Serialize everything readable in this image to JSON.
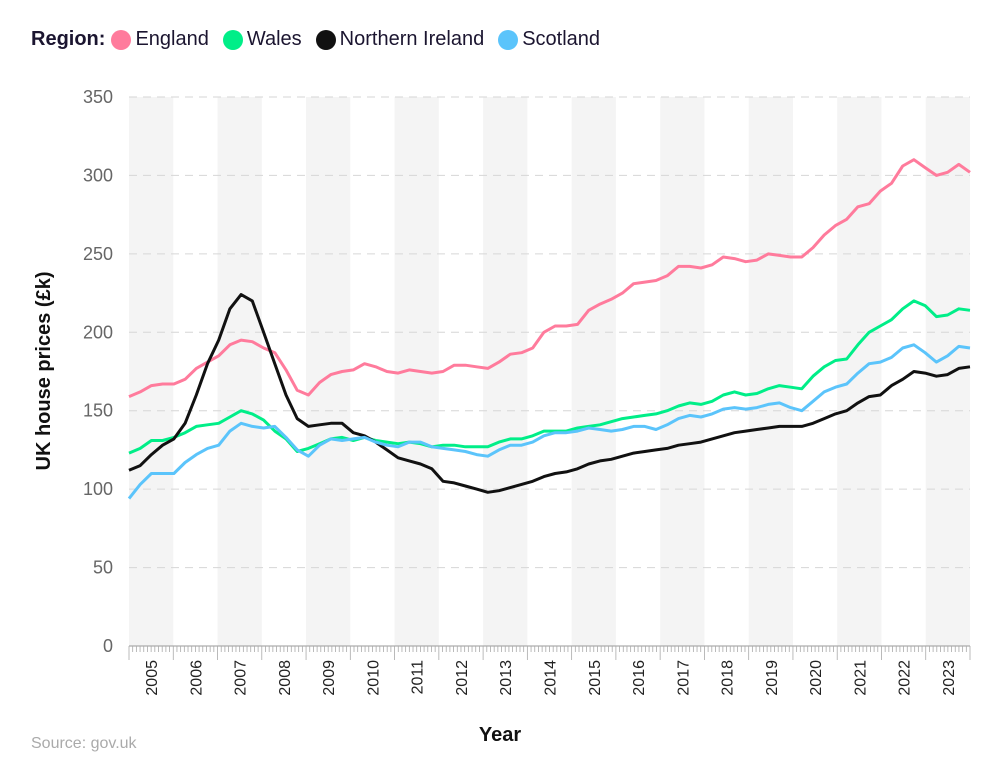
{
  "chart_data": {
    "type": "line",
    "title": "",
    "xlabel": "Year",
    "ylabel": "UK house prices (£k)",
    "ylim": [
      0,
      350
    ],
    "yticks": [
      0,
      50,
      100,
      150,
      200,
      250,
      300,
      350
    ],
    "xticks": [
      "2005",
      "2006",
      "2007",
      "2008",
      "2009",
      "2010",
      "2011",
      "2012",
      "2013",
      "2014",
      "2015",
      "2016",
      "2017",
      "2018",
      "2019",
      "2020",
      "2021",
      "2022",
      "2023"
    ],
    "x_note_resolution": "quarterly",
    "grid": "horizontal dashed, alternating year bands",
    "legend": {
      "title": "Region:",
      "placement": "top-left"
    },
    "series": [
      {
        "name": "England",
        "color": "#ff7b9c",
        "values": [
          159,
          162,
          166,
          167,
          167,
          170,
          177,
          181,
          185,
          192,
          195,
          194,
          190,
          187,
          176,
          163,
          160,
          168,
          173,
          175,
          176,
          180,
          178,
          175,
          174,
          176,
          175,
          174,
          175,
          179,
          179,
          178,
          177,
          181,
          186,
          187,
          190,
          200,
          204,
          204,
          205,
          214,
          218,
          221,
          225,
          231,
          232,
          233,
          236,
          242,
          242,
          241,
          243,
          248,
          247,
          245,
          246,
          250,
          249,
          248,
          248,
          254,
          262,
          268,
          272,
          280,
          282,
          290,
          295,
          306,
          310,
          305,
          300,
          302,
          307,
          302
        ]
      },
      {
        "name": "Wales",
        "color": "#00ee88",
        "values": [
          123,
          126,
          131,
          131,
          133,
          136,
          140,
          141,
          142,
          146,
          150,
          148,
          144,
          137,
          132,
          124,
          126,
          129,
          132,
          133,
          131,
          133,
          131,
          130,
          129,
          130,
          129,
          127,
          128,
          128,
          127,
          127,
          127,
          130,
          132,
          132,
          134,
          137,
          137,
          137,
          139,
          140,
          141,
          143,
          145,
          146,
          147,
          148,
          150,
          153,
          155,
          154,
          156,
          160,
          162,
          160,
          161,
          164,
          166,
          165,
          164,
          172,
          178,
          182,
          183,
          192,
          200,
          204,
          208,
          215,
          220,
          217,
          210,
          211,
          215,
          214
        ]
      },
      {
        "name": "Northern Ireland",
        "color": "#111111",
        "values": [
          112,
          115,
          122,
          128,
          132,
          142,
          160,
          180,
          195,
          215,
          224,
          220,
          200,
          180,
          160,
          145,
          140,
          141,
          142,
          142,
          136,
          134,
          130,
          125,
          120,
          118,
          116,
          113,
          105,
          104,
          102,
          100,
          98,
          99,
          101,
          103,
          105,
          108,
          110,
          111,
          113,
          116,
          118,
          119,
          121,
          123,
          124,
          125,
          126,
          128,
          129,
          130,
          132,
          134,
          136,
          137,
          138,
          139,
          140,
          140,
          140,
          142,
          145,
          148,
          150,
          155,
          159,
          160,
          166,
          170,
          175,
          174,
          172,
          173,
          177,
          178
        ]
      },
      {
        "name": "Scotland",
        "color": "#5bc4fb",
        "values": [
          94,
          103,
          110,
          110,
          110,
          117,
          122,
          126,
          128,
          137,
          142,
          140,
          139,
          140,
          133,
          125,
          121,
          128,
          132,
          131,
          132,
          133,
          130,
          128,
          127,
          130,
          130,
          127,
          126,
          125,
          124,
          122,
          121,
          125,
          128,
          128,
          130,
          134,
          136,
          136,
          137,
          139,
          138,
          137,
          138,
          140,
          140,
          138,
          141,
          145,
          147,
          146,
          148,
          151,
          152,
          151,
          152,
          154,
          155,
          152,
          150,
          156,
          162,
          165,
          167,
          174,
          180,
          181,
          184,
          190,
          192,
          187,
          181,
          185,
          191,
          190
        ]
      }
    ],
    "source": "Source: gov.uk"
  }
}
